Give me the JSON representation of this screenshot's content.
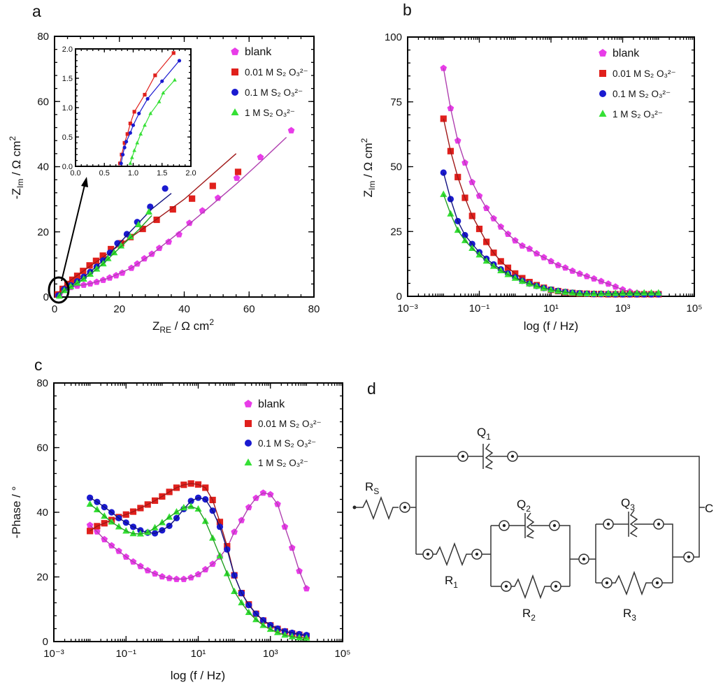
{
  "panel_letters": {
    "a": "a",
    "b": "b",
    "c": "c",
    "d": "d"
  },
  "axis_labels": {
    "a_y": {
      "pre": "-Z",
      "sub": "Im",
      "post": " / Ω cm",
      "sup": "2"
    },
    "a_x": {
      "pre": "Z",
      "sub": "RE",
      "post": " / Ω cm",
      "sup": "2"
    },
    "b_y": {
      "pre": "Z",
      "sub": "Im",
      "post": " / Ω cm",
      "sup": "2"
    },
    "b_x": "log (f / Hz)",
    "c_y": "-Phase / °",
    "c_x": "log (f / Hz)"
  },
  "legend": [
    {
      "label": "blank",
      "color": "#e83ce8",
      "marker": "pentagon"
    },
    {
      "label": "0.01 M S₂ O₃²⁻",
      "color": "#e0201c",
      "marker": "square"
    },
    {
      "label": "0.1 M S₂ O₃²⁻",
      "color": "#1a1ad0",
      "marker": "circle"
    },
    {
      "label": "1 M S₂ O₃²⁻",
      "color": "#35e035",
      "marker": "triangle"
    }
  ],
  "fit_colors": [
    "#b040b0",
    "#a01818",
    "#101080",
    "#20a020"
  ],
  "chart_data": [
    {
      "id": "a",
      "type": "scatter",
      "xscale": "linear",
      "yscale": "linear",
      "xlim": [
        0,
        80
      ],
      "ylim": [
        0,
        80
      ],
      "xticks": [
        0,
        20,
        40,
        60,
        80
      ],
      "xtick_labels": [
        "0",
        "20",
        "40",
        "60",
        "80"
      ],
      "yticks": [
        0,
        20,
        40,
        60,
        80
      ],
      "ytick_labels": [
        "0",
        "20",
        "40",
        "60",
        "80"
      ],
      "legend_position": "top-right",
      "series": [
        {
          "name": "blank",
          "points": [
            [
              1.5,
              0.5
            ],
            [
              3,
              2.2
            ],
            [
              5,
              3
            ],
            [
              7,
              3.4
            ],
            [
              9,
              3.7
            ],
            [
              11,
              4.1
            ],
            [
              13,
              4.6
            ],
            [
              15,
              5.2
            ],
            [
              17,
              5.9
            ],
            [
              19,
              6.6
            ],
            [
              20.9,
              7.4
            ],
            [
              23.7,
              8.9
            ],
            [
              25.5,
              10.2
            ],
            [
              27.7,
              11.8
            ],
            [
              30,
              13.2
            ],
            [
              32.3,
              15
            ],
            [
              35.2,
              16.9
            ],
            [
              38.4,
              19.2
            ],
            [
              41.6,
              22.7
            ],
            [
              45.6,
              26.5
            ],
            [
              50.4,
              30.4
            ],
            [
              56.2,
              36.5
            ],
            [
              63.5,
              42.9
            ],
            [
              73,
              51.1
            ]
          ],
          "fit": [
            [
              1.5,
              0.5
            ],
            [
              5,
              3
            ],
            [
              11,
              4.1
            ],
            [
              17,
              5.9
            ],
            [
              23.7,
              8.9
            ],
            [
              30,
              13.2
            ],
            [
              38.4,
              19.8
            ],
            [
              45.6,
              25.8
            ],
            [
              56.2,
              34.8
            ],
            [
              63.5,
              41.5
            ],
            [
              71.5,
              49
            ]
          ]
        },
        {
          "name": "0.01 M S₂ O₃²⁻",
          "points": [
            [
              1,
              0.8
            ],
            [
              2.5,
              2.5
            ],
            [
              4,
              4
            ],
            [
              5.5,
              5.3
            ],
            [
              7,
              6.5
            ],
            [
              8.8,
              8
            ],
            [
              10.8,
              9.7
            ],
            [
              12.8,
              11.1
            ],
            [
              14.9,
              12.7
            ],
            [
              17.4,
              14.7
            ],
            [
              20.5,
              16.5
            ],
            [
              23.4,
              18.4
            ],
            [
              27.2,
              20.9
            ],
            [
              31.5,
              23.7
            ],
            [
              36.5,
              26.9
            ],
            [
              42.4,
              30.2
            ],
            [
              48.8,
              34.1
            ],
            [
              56.6,
              38.4
            ]
          ],
          "fit": [
            [
              0.8,
              0
            ],
            [
              2,
              2.6
            ],
            [
              5,
              5.2
            ],
            [
              10,
              8.8
            ],
            [
              15,
              12.3
            ],
            [
              20,
              15.9
            ],
            [
              30,
              22.8
            ],
            [
              40,
              30
            ],
            [
              56,
              44
            ]
          ]
        },
        {
          "name": "0.1 M S₂ O₃²⁻",
          "points": [
            [
              1.2,
              0.5
            ],
            [
              3,
              2.4
            ],
            [
              5,
              3.6
            ],
            [
              7,
              4.8
            ],
            [
              9,
              6.2
            ],
            [
              11,
              7.7
            ],
            [
              13,
              9.3
            ],
            [
              15,
              11.2
            ],
            [
              17.1,
              13.6
            ],
            [
              19.4,
              16.5
            ],
            [
              22.3,
              19.3
            ],
            [
              25.5,
              23
            ],
            [
              29.5,
              27.7
            ],
            [
              34.1,
              33.3
            ]
          ],
          "fit": [
            [
              0.8,
              0
            ],
            [
              3,
              2.4
            ],
            [
              7,
              4.8
            ],
            [
              11,
              7.7
            ],
            [
              15,
              11.2
            ],
            [
              19.4,
              15.9
            ],
            [
              25.5,
              22.3
            ],
            [
              30,
              27
            ],
            [
              36,
              31.8
            ]
          ]
        },
        {
          "name": "1 M S₂ O₃²⁻",
          "points": [
            [
              1.5,
              0.3
            ],
            [
              3,
              2
            ],
            [
              5,
              3.2
            ],
            [
              7,
              4.3
            ],
            [
              9,
              5.5
            ],
            [
              11,
              7
            ],
            [
              13,
              8.6
            ],
            [
              15,
              10.2
            ],
            [
              16.5,
              11.8
            ],
            [
              18.4,
              13.6
            ],
            [
              20.5,
              15.7
            ],
            [
              23.4,
              18.5
            ],
            [
              25.9,
              22.2
            ],
            [
              29.1,
              26.1
            ]
          ],
          "fit": [
            [
              1,
              0
            ],
            [
              3,
              2
            ],
            [
              7,
              4.3
            ],
            [
              11,
              7
            ],
            [
              15,
              10.2
            ],
            [
              20.5,
              15.5
            ],
            [
              25.9,
              20.6
            ],
            [
              30,
              25
            ]
          ]
        }
      ],
      "inset": {
        "xlim": [
          0,
          2
        ],
        "ylim": [
          0,
          2
        ],
        "xticks": [
          0,
          0.5,
          1,
          1.5,
          2
        ],
        "xtick_labels": [
          "0.0",
          "0.5",
          "1.0",
          "1.5",
          "2.0"
        ],
        "yticks": [
          0,
          0.5,
          1,
          1.5,
          2
        ],
        "ytick_labels": [
          "0.0",
          "0.5",
          "1.0",
          "1.5",
          "2.0"
        ],
        "series": [
          {
            "points": [
              [
                0.77,
                0.05
              ],
              [
                0.8,
                0.2
              ],
              [
                0.85,
                0.4
              ],
              [
                0.9,
                0.55
              ],
              [
                0.95,
                0.73
              ],
              [
                1.02,
                0.93
              ],
              [
                1.2,
                1.22
              ],
              [
                1.38,
                1.55
              ],
              [
                1.7,
                1.93
              ]
            ]
          },
          {
            "points": [
              [
                0.79,
                0.05
              ],
              [
                0.82,
                0.2
              ],
              [
                0.85,
                0.32
              ],
              [
                0.88,
                0.42
              ],
              [
                0.95,
                0.57
              ],
              [
                1.0,
                0.7
              ],
              [
                1.1,
                0.9
              ],
              [
                1.25,
                1.15
              ],
              [
                1.5,
                1.45
              ],
              [
                1.8,
                1.8
              ]
            ]
          },
          {
            "points": [
              [
                0.95,
                0.05
              ],
              [
                0.98,
                0.15
              ],
              [
                1.02,
                0.27
              ],
              [
                1.07,
                0.4
              ],
              [
                1.13,
                0.55
              ],
              [
                1.2,
                0.7
              ],
              [
                1.3,
                0.9
              ],
              [
                1.45,
                1.1
              ],
              [
                1.52,
                1.25
              ],
              [
                1.72,
                1.47
              ]
            ]
          }
        ]
      }
    },
    {
      "id": "b",
      "type": "line",
      "xscale": "log",
      "yscale": "linear",
      "xlim": [
        0.001,
        100000
      ],
      "ylim": [
        0,
        100
      ],
      "xticks": [
        0.001,
        0.1,
        10,
        1000,
        100000
      ],
      "xtick_labels": [
        "10⁻³",
        "10⁻¹",
        "10¹",
        "10³",
        "10⁵"
      ],
      "yticks": [
        0,
        25,
        50,
        75,
        100
      ],
      "ytick_labels": [
        "0",
        "25",
        "50",
        "75",
        "100"
      ],
      "legend_position": "top-right",
      "x": [
        0.01,
        0.0158,
        0.0251,
        0.0398,
        0.0631,
        0.1,
        0.158,
        0.251,
        0.398,
        0.631,
        1,
        1.58,
        2.51,
        3.98,
        6.31,
        10,
        15.8,
        25.1,
        39.8,
        63.1,
        100,
        158,
        251,
        398,
        631,
        1000,
        1580,
        2510,
        3980,
        6310,
        10000
      ],
      "series": [
        {
          "name": "blank",
          "values": [
            88,
            72.5,
            60,
            51.5,
            44,
            38.7,
            34,
            30,
            26.8,
            24,
            21.5,
            19.5,
            18.3,
            16.5,
            15,
            13.5,
            12,
            11,
            9.8,
            8.7,
            7.7,
            6.8,
            5.8,
            4.8,
            3.7,
            2.6,
            1.8,
            1.3,
            1.0,
            0.9,
            0.8
          ]
        },
        {
          "name": "0.01 M S₂ O₃²⁻",
          "values": [
            68.5,
            56,
            46,
            38,
            31,
            26,
            21,
            16.8,
            13.5,
            11,
            8.8,
            7,
            5.5,
            4.3,
            3.3,
            2.5,
            2,
            1.6,
            1.3,
            1.1,
            1,
            0.9,
            0.9,
            0.8,
            0.8,
            0.8,
            0.8,
            0.8,
            0.8,
            0.8,
            0.8
          ]
        },
        {
          "name": "0.1 M S₂ O₃²⁻",
          "values": [
            47.7,
            37.5,
            29,
            23.6,
            20.2,
            17,
            14.5,
            12.3,
            10.4,
            8.8,
            7.3,
            6,
            4.9,
            4,
            3.2,
            2.6,
            2.1,
            1.7,
            1.4,
            1.2,
            1.0,
            0.9,
            0.9,
            0.9,
            0.8,
            0.8,
            0.8,
            0.8,
            0.8,
            0.8,
            0.8
          ]
        },
        {
          "name": "1 M S₂ O₃²⁻",
          "values": [
            39.3,
            31.8,
            25.5,
            21.5,
            18.5,
            16,
            13.6,
            11.6,
            9.9,
            8.4,
            7,
            5.8,
            4.8,
            3.9,
            3.1,
            2.5,
            2,
            1.6,
            1.3,
            1.1,
            1.0,
            1.0,
            1.0,
            1.1,
            1.1,
            1.2,
            1.2,
            1.2,
            1.3,
            1.3,
            1.3
          ]
        }
      ]
    },
    {
      "id": "c",
      "type": "line",
      "xscale": "log",
      "yscale": "linear",
      "xlim": [
        0.001,
        100000
      ],
      "ylim": [
        0,
        80
      ],
      "xticks": [
        0.001,
        0.1,
        10,
        1000,
        100000
      ],
      "xtick_labels": [
        "10⁻³",
        "10⁻¹",
        "10¹",
        "10³",
        "10⁵"
      ],
      "yticks": [
        0,
        20,
        40,
        60,
        80
      ],
      "ytick_labels": [
        "0",
        "20",
        "40",
        "60",
        "80"
      ],
      "legend_position": "top-right",
      "x": [
        0.01,
        0.0158,
        0.0251,
        0.0398,
        0.0631,
        0.1,
        0.158,
        0.251,
        0.398,
        0.631,
        1,
        1.58,
        2.51,
        3.98,
        6.31,
        10,
        15.8,
        25.1,
        39.8,
        63.1,
        100,
        158,
        251,
        398,
        631,
        1000,
        1580,
        2510,
        3980,
        6310,
        10000
      ],
      "series": [
        {
          "name": "blank",
          "values": [
            36,
            34,
            31.6,
            29.7,
            28,
            26.2,
            24.7,
            23.3,
            22,
            21,
            20.1,
            19.6,
            19.3,
            19.3,
            19.8,
            20.8,
            22.3,
            24,
            26.2,
            29,
            33.9,
            37.5,
            41.5,
            44.4,
            46,
            45.5,
            42.5,
            35.5,
            29,
            21.8,
            16.4
          ]
        },
        {
          "name": "0.01 M S₂ O₃²⁻",
          "values": [
            34.2,
            35.7,
            36.6,
            37.6,
            38.5,
            39.3,
            40.2,
            41.3,
            42.4,
            43.6,
            44.9,
            46.3,
            47.6,
            48.5,
            48.9,
            48.6,
            47.6,
            43.8,
            37,
            29.5,
            20.5,
            15,
            11.5,
            8.6,
            6.5,
            5,
            3.9,
            3.1,
            2.5,
            2.1,
            1.7
          ]
        },
        {
          "name": "0.1 M S₂ O₃²⁻",
          "values": [
            44.5,
            43.2,
            41.6,
            40,
            38.2,
            36.8,
            35.5,
            34.4,
            33.7,
            33.5,
            34.4,
            35.8,
            38.2,
            41,
            43.5,
            44.5,
            44,
            40.5,
            35.5,
            28.5,
            20.5,
            15,
            11.3,
            8.6,
            6.6,
            5.1,
            4,
            3.2,
            2.7,
            2.3,
            2
          ]
        },
        {
          "name": "1 M S₂ O₃²⁻",
          "values": [
            42.5,
            40.8,
            38.8,
            37,
            35.5,
            34.2,
            33.4,
            33.3,
            33.8,
            35.2,
            36.8,
            38.5,
            40.1,
            41.4,
            41.8,
            41,
            37.2,
            32,
            26.5,
            21,
            15.5,
            12,
            9,
            6.8,
            5,
            3.8,
            2.8,
            2,
            1.5,
            1.2,
            1.1
          ]
        }
      ]
    }
  ],
  "circuit": {
    "labels": {
      "rs": "R",
      "rs_sub": "S",
      "q1": "Q",
      "q1_sub": "1",
      "q2": "Q",
      "q2_sub": "2",
      "q3": "Q",
      "q3_sub": "3",
      "r1": "R",
      "r1_sub": "1",
      "r2": "R",
      "r2_sub": "2",
      "r3": "R",
      "r3_sub": "3",
      "counter": "C"
    }
  }
}
